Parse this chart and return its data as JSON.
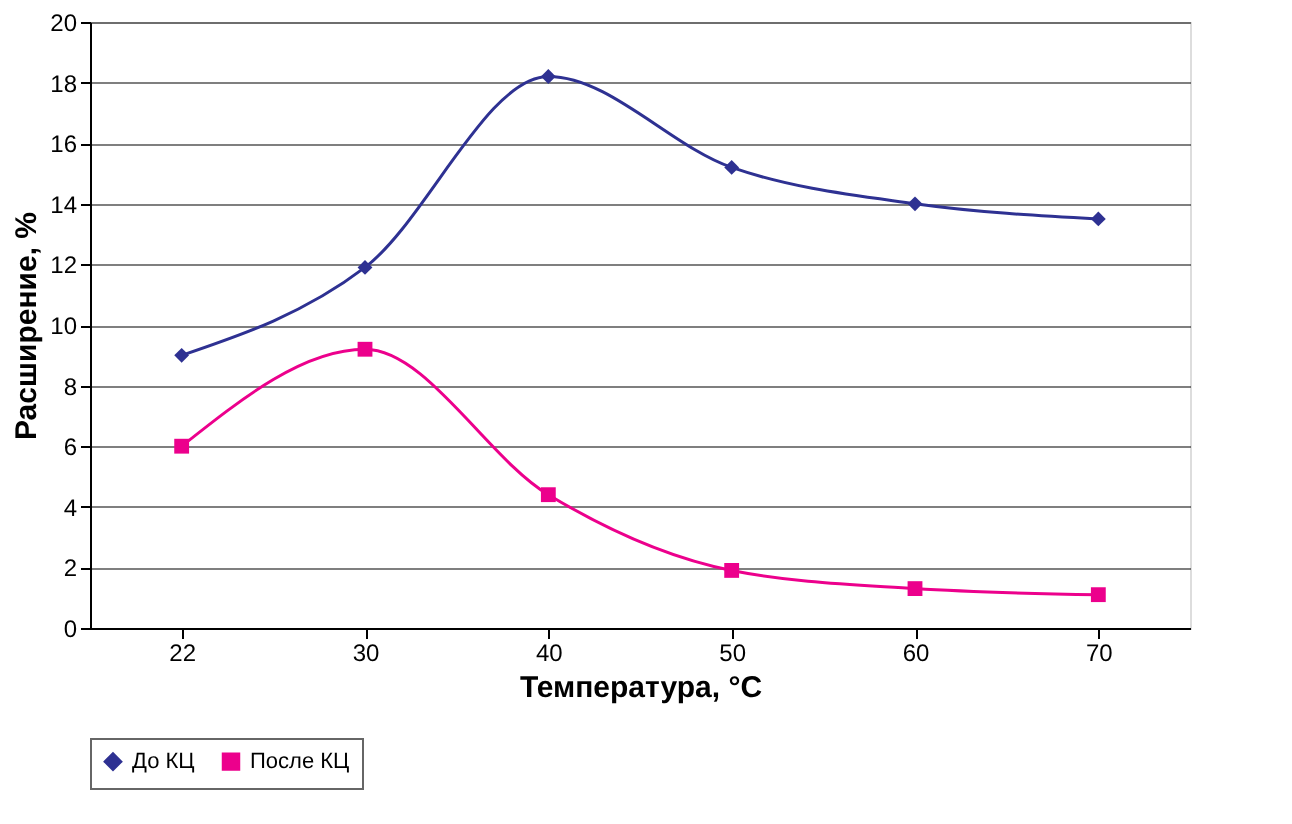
{
  "chart_data": {
    "type": "line",
    "xlabel": "Температура, °С",
    "ylabel": "Расширение, %",
    "categories": [
      "22",
      "30",
      "40",
      "50",
      "60",
      "70"
    ],
    "series": [
      {
        "name": "До КЦ",
        "color": "#2e3192",
        "marker": "diamond",
        "values": [
          9.0,
          11.9,
          18.2,
          15.2,
          14.0,
          13.5
        ]
      },
      {
        "name": "После КЦ",
        "color": "#ec008c",
        "marker": "square",
        "values": [
          6.0,
          9.2,
          4.4,
          1.9,
          1.3,
          1.1
        ]
      }
    ],
    "ylim": [
      0,
      20
    ],
    "yticks": [
      0,
      2,
      4,
      6,
      8,
      10,
      12,
      14,
      16,
      18,
      20
    ],
    "grid": "y",
    "legend": "bottom",
    "line_style": "solid"
  }
}
